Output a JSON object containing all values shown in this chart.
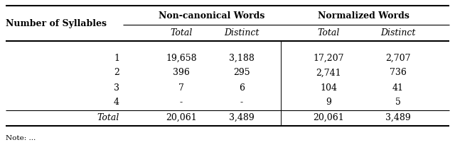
{
  "col_header_row1_left": "Number of Syllables",
  "col_header_row1_nc": "Non-canonical Words",
  "col_header_row1_nw": "Normalized Words",
  "col_header_row2": [
    "Total",
    "Distinct",
    "Total",
    "Distinct"
  ],
  "rows": [
    [
      "1",
      "19,658",
      "3,188",
      "17,207",
      "2,707"
    ],
    [
      "2",
      "396",
      "295",
      "2,741",
      "736"
    ],
    [
      "3",
      "7",
      "6",
      "104",
      "41"
    ],
    [
      "4",
      "-",
      "-",
      "9",
      "5"
    ],
    [
      "Total",
      "20,061",
      "3,489",
      "20,061",
      "3,489"
    ]
  ],
  "note_text": "Note: ...",
  "bg_color": "#ffffff",
  "font_size": 9,
  "font_family": "serif"
}
